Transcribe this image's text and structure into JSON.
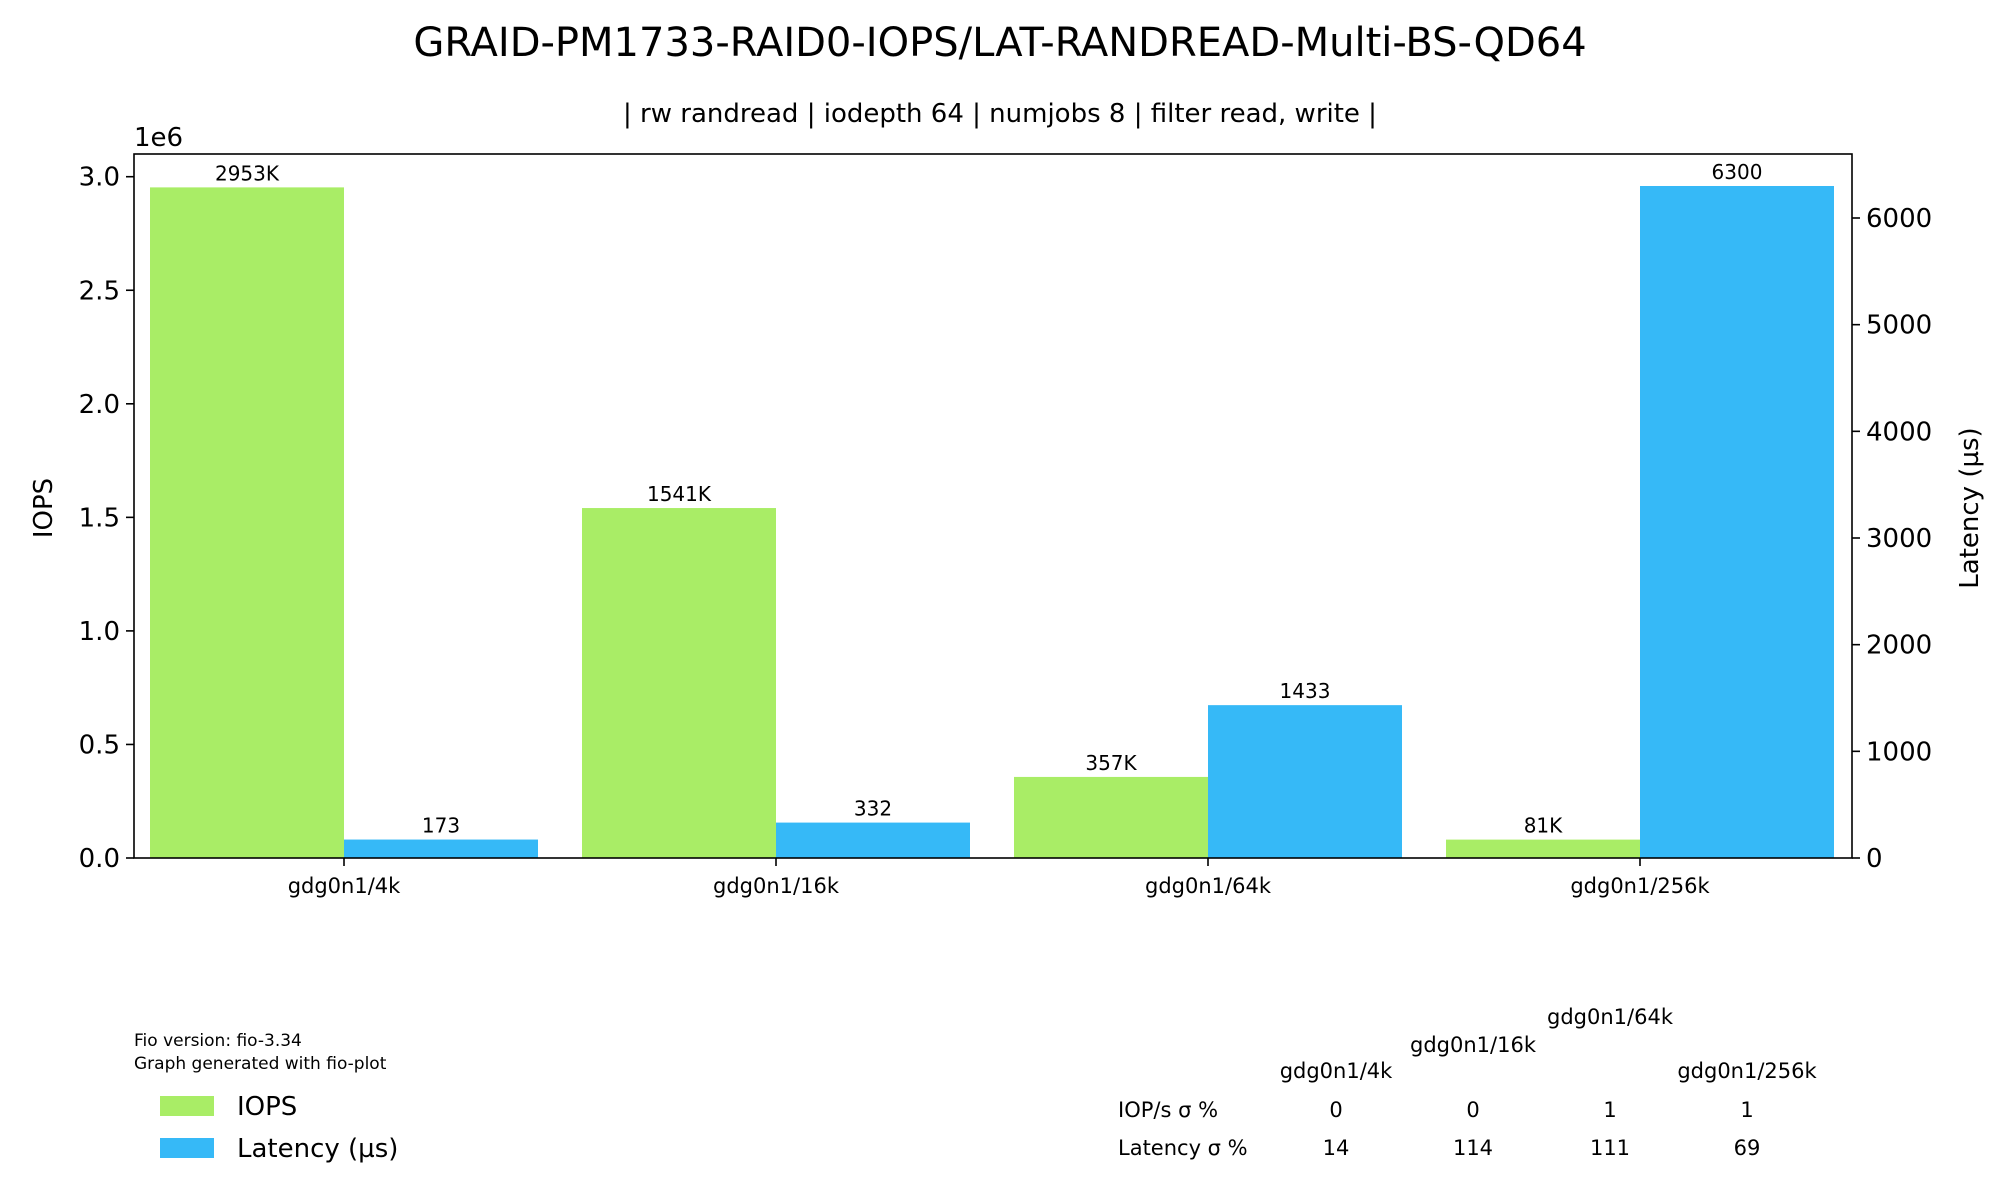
{
  "chart_data": {
    "type": "bar",
    "title": "GRAID-PM1733-RAID0-IOPS/LAT-RANDREAD-Multi-BS-QD64",
    "subtitle": "| rw randread | iodepth 64 | numjobs 8 | filter read, write |",
    "categories": [
      "gdg0n1/4k",
      "gdg0n1/16k",
      "gdg0n1/64k",
      "gdg0n1/256k"
    ],
    "ylabel": "IOPS",
    "ylabel_right": "Latency (µs)",
    "y_offset_label": "1e6",
    "ylim": [
      0,
      3100000
    ],
    "ylim_right": [
      0,
      6600
    ],
    "yticks": [
      0,
      500000,
      1000000,
      1500000,
      2000000,
      2500000,
      3000000
    ],
    "ytick_labels": [
      "0.0",
      "0.5",
      "1.0",
      "1.5",
      "2.0",
      "2.5",
      "3.0"
    ],
    "yticks_right": [
      0,
      1000,
      2000,
      3000,
      4000,
      5000,
      6000
    ],
    "ytick_labels_right": [
      "0",
      "1000",
      "2000",
      "3000",
      "4000",
      "5000",
      "6000"
    ],
    "grid": false,
    "series": [
      {
        "name": "IOPS",
        "axis": "left",
        "color": "#a9ed66",
        "values": [
          2953000,
          1541000,
          357000,
          81000
        ],
        "labels": [
          "2953K",
          "1541K",
          "357K",
          "81K"
        ]
      },
      {
        "name": "Latency (µs)",
        "axis": "right",
        "color": "#36b9f7",
        "values": [
          173,
          332,
          1433,
          6300
        ],
        "labels": [
          "173",
          "332",
          "1433",
          "6300"
        ]
      }
    ],
    "legend": {
      "placement": "bottom-left"
    },
    "footer_notes": [
      "Fio version: fio-3.34",
      "Graph generated with fio-plot"
    ],
    "stddev_table": {
      "columns": [
        "gdg0n1/4k",
        "gdg0n1/16k",
        "gdg0n1/64k",
        "gdg0n1/256k"
      ],
      "rows": [
        {
          "label": "IOP/s σ %",
          "values": [
            "0",
            "0",
            "1",
            "1"
          ]
        },
        {
          "label": "Latency σ %",
          "values": [
            "14",
            "114",
            "111",
            "69"
          ]
        }
      ]
    }
  }
}
